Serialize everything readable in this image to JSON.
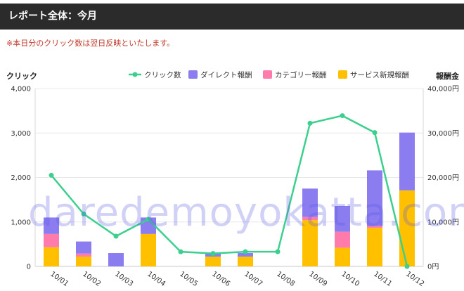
{
  "header": {
    "title": "レポート全体：今月"
  },
  "note": "※本日分のクリック数は翌日反映といたします。",
  "watermark": "daredemoyokatta.com",
  "colors": {
    "header_bg": "#2b2b2b",
    "clicks": "#3ccf8e",
    "direct": "#8b7cf0",
    "category": "#ff7bac",
    "service": "#ffc000"
  },
  "chart_data": {
    "type": "bar",
    "categories": [
      "10/01",
      "10/02",
      "10/03",
      "10/04",
      "10/05",
      "10/06",
      "10/07",
      "10/08",
      "10/09",
      "10/10",
      "10/11",
      "10/12"
    ],
    "y_left_label": "クリック",
    "y_right_label": "報酬金",
    "y_left_ticks": [
      "0",
      "1,000",
      "2,000",
      "3,000",
      "4,000"
    ],
    "y_right_ticks": [
      "0円",
      "10,000円",
      "20,000円",
      "30,000円",
      "40,000円"
    ],
    "ylim_left": [
      0,
      4000
    ],
    "ylim_right": [
      0,
      40000
    ],
    "legend_position": "top-right",
    "grid": true,
    "series": [
      {
        "name": "クリック数",
        "type": "line",
        "axis": "left",
        "color": "#3ccf8e",
        "values": [
          2050,
          1180,
          680,
          1060,
          330,
          290,
          330,
          330,
          3220,
          3390,
          3010,
          0
        ]
      },
      {
        "name": "ダイレクト報酬",
        "type": "bar",
        "axis": "right",
        "stack": "reward",
        "color": "#8b7cf0",
        "values": [
          3700,
          2700,
          3000,
          3700,
          0,
          800,
          800,
          0,
          6400,
          5800,
          12500,
          13000
        ]
      },
      {
        "name": "カテゴリー報酬",
        "type": "bar",
        "axis": "right",
        "stack": "reward",
        "color": "#ff7bac",
        "values": [
          3000,
          700,
          0,
          0,
          0,
          0,
          0,
          0,
          700,
          3600,
          400,
          0
        ]
      },
      {
        "name": "サービス新規報酬",
        "type": "bar",
        "axis": "right",
        "stack": "reward",
        "color": "#ffc000",
        "values": [
          4300,
          2200,
          0,
          7300,
          0,
          2200,
          2200,
          0,
          10400,
          4200,
          8700,
          17100
        ]
      }
    ]
  }
}
